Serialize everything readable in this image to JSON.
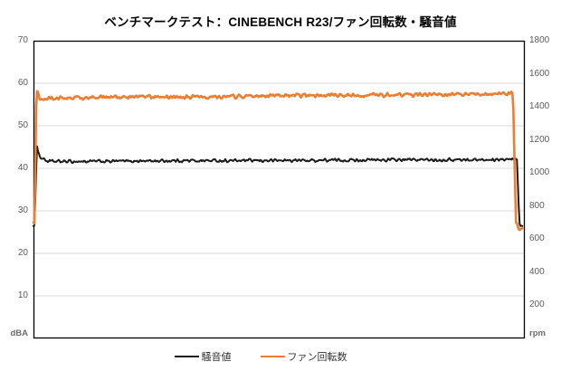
{
  "title": "ベンチマークテスト：CINEBENCH R23/ファン回転数・騒音値",
  "colors": {
    "background": "#ffffff",
    "grid": "#d9d9d9",
    "plot_border": "#000000",
    "axis_label": "#595959",
    "noise_line": "#1a1a1a",
    "fan_line": "#ed7d31"
  },
  "legend": {
    "items": [
      {
        "id": "noise",
        "label": "騒音値",
        "color": "#1a1a1a"
      },
      {
        "id": "fan",
        "label": "ファン回転数",
        "color": "#ed7d31"
      }
    ]
  },
  "chart_data": {
    "type": "line",
    "title": "ベンチマークテスト：CINEBENCH R23/ファン回転数・騒音値",
    "xlabel": "",
    "x_axis": {
      "tick_labels_visible": false
    },
    "grid": "horizontal-only",
    "legend_position": "bottom-center",
    "left_axis": {
      "unit": "dBA",
      "min": 0,
      "max": 70,
      "tick_step": 10,
      "ticks": [
        70,
        60,
        50,
        40,
        30,
        20,
        10
      ]
    },
    "right_axis": {
      "unit": "rpm",
      "min": 0,
      "max": 1800,
      "tick_step": 200,
      "ticks": [
        1800,
        1600,
        1400,
        1200,
        1000,
        800,
        600,
        400,
        200
      ]
    },
    "series": [
      {
        "id": "noise",
        "name": "騒音値",
        "axis": "left",
        "color": "#1a1a1a",
        "stroke_width": 2,
        "jitter": 0.45,
        "points": [
          [
            0.0,
            26.5
          ],
          [
            0.002,
            26.6
          ],
          [
            0.007,
            45.3
          ],
          [
            0.013,
            42.6
          ],
          [
            0.03,
            41.6
          ],
          [
            0.1,
            41.6
          ],
          [
            0.2,
            41.7
          ],
          [
            0.3,
            41.8
          ],
          [
            0.45,
            41.8
          ],
          [
            0.6,
            41.9
          ],
          [
            0.75,
            42.0
          ],
          [
            0.9,
            42.0
          ],
          [
            0.96,
            42.0
          ],
          [
            0.984,
            42.1
          ],
          [
            0.989,
            27.0
          ],
          [
            0.995,
            26.2
          ]
        ]
      },
      {
        "id": "fan",
        "name": "ファン回転数",
        "axis": "right",
        "color": "#ed7d31",
        "stroke_width": 2.6,
        "jitter": 13,
        "points": [
          [
            0.0,
            690
          ],
          [
            0.002,
            695
          ],
          [
            0.006,
            1508
          ],
          [
            0.013,
            1446
          ],
          [
            0.04,
            1452
          ],
          [
            0.12,
            1456
          ],
          [
            0.22,
            1462
          ],
          [
            0.32,
            1459
          ],
          [
            0.45,
            1465
          ],
          [
            0.6,
            1469
          ],
          [
            0.75,
            1473
          ],
          [
            0.88,
            1477
          ],
          [
            0.95,
            1479
          ],
          [
            0.976,
            1481
          ],
          [
            0.982,
            700
          ],
          [
            0.988,
            668
          ],
          [
            0.995,
            665
          ]
        ]
      }
    ]
  }
}
